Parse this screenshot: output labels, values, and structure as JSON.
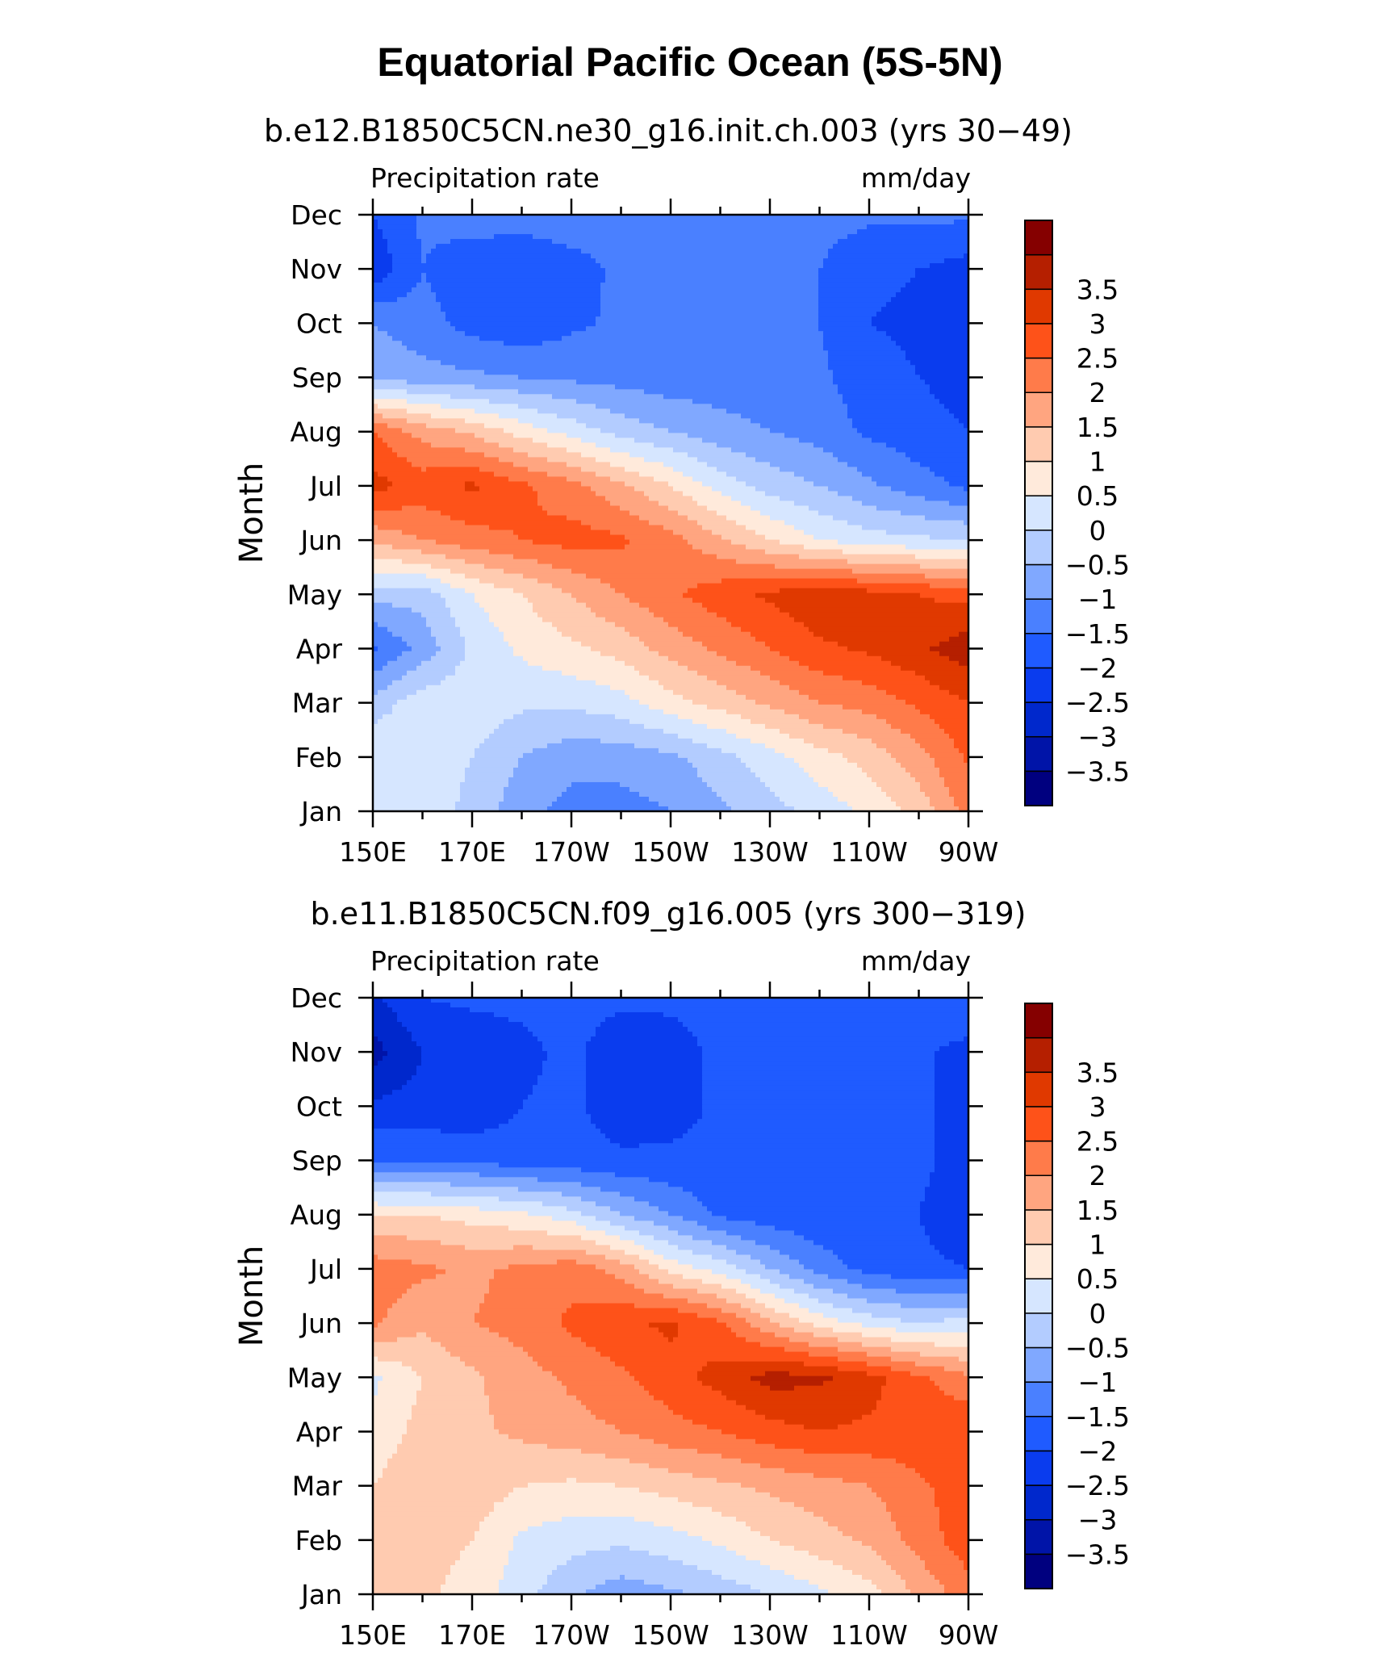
{
  "title": "Equatorial Pacific Ocean (5S-5N)",
  "chart_data": [
    {
      "type": "heatmap",
      "title": "b.e12.B1850C5CN.ne30_g16.init.ch.003 (yrs 30−49)",
      "left_label": "Precipitation rate",
      "right_label": "mm/day",
      "ylabel": "Month",
      "x_ticks": [
        "150E",
        "170E",
        "170W",
        "150W",
        "130W",
        "110W",
        "90W"
      ],
      "y_ticks": [
        "Jan",
        "Feb",
        "Mar",
        "Apr",
        "May",
        "Jun",
        "Jul",
        "Aug",
        "Sep",
        "Oct",
        "Nov",
        "Dec"
      ],
      "x": [
        150,
        160,
        170,
        180,
        190,
        200,
        210,
        220,
        230,
        240,
        250,
        260,
        270
      ],
      "y": [
        "Jan",
        "Feb",
        "Mar",
        "Apr",
        "May",
        "Jun",
        "Jul",
        "Aug",
        "Sep",
        "Oct",
        "Nov",
        "Dec"
      ],
      "z": [
        [
          0.3,
          0.4,
          -0.2,
          -0.8,
          -1.2,
          -1.2,
          -1.0,
          -0.6,
          -0.2,
          0.2,
          0.6,
          1.2,
          2.2
        ],
        [
          0.5,
          0.4,
          0.0,
          -0.5,
          -0.8,
          -0.8,
          -0.6,
          -0.2,
          0.3,
          0.8,
          1.2,
          1.8,
          2.6
        ],
        [
          -0.3,
          0.3,
          0.3,
          0.1,
          0.1,
          0.3,
          0.8,
          1.2,
          1.6,
          2.0,
          2.2,
          2.6,
          3.0
        ],
        [
          -1.6,
          -0.8,
          0.1,
          0.6,
          0.9,
          1.2,
          1.7,
          2.1,
          2.5,
          2.9,
          3.1,
          3.4,
          3.8
        ],
        [
          -0.3,
          -0.3,
          0.5,
          1.0,
          1.5,
          2.0,
          2.4,
          2.8,
          3.1,
          3.4,
          3.2,
          3.0,
          2.8
        ],
        [
          1.6,
          2.0,
          2.3,
          2.5,
          2.7,
          2.6,
          2.2,
          1.6,
          1.0,
          0.5,
          0.2,
          0.1,
          0.0
        ],
        [
          3.2,
          2.8,
          3.1,
          2.6,
          2.2,
          1.6,
          1.0,
          0.3,
          -0.2,
          -0.5,
          -0.9,
          -1.3,
          -1.6
        ],
        [
          2.5,
          1.8,
          1.4,
          0.8,
          0.3,
          -0.2,
          -0.5,
          -0.8,
          -1.0,
          -1.2,
          -1.6,
          -1.8,
          -2.0
        ],
        [
          -0.6,
          -0.8,
          -0.9,
          -1.0,
          -1.1,
          -1.2,
          -1.3,
          -1.3,
          -1.3,
          -1.4,
          -1.8,
          -2.0,
          -2.2
        ],
        [
          -1.0,
          -1.3,
          -1.7,
          -1.9,
          -1.6,
          -1.4,
          -1.4,
          -1.4,
          -1.4,
          -1.5,
          -2.0,
          -2.1,
          -2.3
        ],
        [
          -2.4,
          -1.5,
          -1.9,
          -2.0,
          -1.7,
          -1.4,
          -1.4,
          -1.4,
          -1.4,
          -1.5,
          -1.9,
          -2.0,
          -2.2
        ],
        [
          -2.0,
          -1.4,
          -1.2,
          -1.2,
          -1.2,
          -1.3,
          -1.3,
          -1.3,
          -1.3,
          -1.3,
          -1.4,
          -1.4,
          -1.4
        ]
      ],
      "colorbar": {
        "levels": [
          -3.5,
          -3,
          -2.5,
          -2,
          -1.5,
          -1,
          -0.5,
          0,
          0.5,
          1,
          1.5,
          2,
          2.5,
          3,
          3.5
        ],
        "labels": [
          "−3.5",
          "−3",
          "−2.5",
          "−2",
          "−1.5",
          "−1",
          "−0.5",
          "0",
          "0.5",
          "1",
          "1.5",
          "2",
          "2.5",
          "3",
          "3.5"
        ],
        "colors": [
          "#00007f",
          "#0014a8",
          "#0028cc",
          "#0a3cee",
          "#1f5bff",
          "#4a80ff",
          "#80a8ff",
          "#b3ccff",
          "#d6e6ff",
          "#ffeadb",
          "#ffcbb0",
          "#ffa580",
          "#ff7b4a",
          "#fe5219",
          "#e03900",
          "#b51f00",
          "#850000"
        ]
      }
    },
    {
      "type": "heatmap",
      "title": "b.e11.B1850C5CN.f09_g16.005 (yrs 300−319)",
      "left_label": "Precipitation rate",
      "right_label": "mm/day",
      "ylabel": "Month",
      "x_ticks": [
        "150E",
        "170E",
        "170W",
        "150W",
        "130W",
        "110W",
        "90W"
      ],
      "y_ticks": [
        "Jan",
        "Feb",
        "Mar",
        "Apr",
        "May",
        "Jun",
        "Jul",
        "Aug",
        "Sep",
        "Oct",
        "Nov",
        "Dec"
      ],
      "x": [
        150,
        160,
        170,
        180,
        190,
        200,
        210,
        220,
        230,
        240,
        250,
        260,
        270
      ],
      "y": [
        "Jan",
        "Feb",
        "Mar",
        "Apr",
        "May",
        "Jun",
        "Jul",
        "Aug",
        "Sep",
        "Oct",
        "Nov",
        "Dec"
      ],
      "z": [
        [
          1.2,
          1.1,
          0.8,
          0.2,
          -0.4,
          -0.8,
          -0.6,
          -0.3,
          0.0,
          0.4,
          0.8,
          1.6,
          2.3
        ],
        [
          1.4,
          1.2,
          1.0,
          0.4,
          0.2,
          0.1,
          0.3,
          0.6,
          1.0,
          1.3,
          1.6,
          2.2,
          2.8
        ],
        [
          1.0,
          1.5,
          1.3,
          1.0,
          0.9,
          1.0,
          1.2,
          1.4,
          1.6,
          1.8,
          2.0,
          2.4,
          2.8
        ],
        [
          0.6,
          1.2,
          1.4,
          1.6,
          1.8,
          2.0,
          2.3,
          2.5,
          2.8,
          3.0,
          2.9,
          2.8,
          3.0
        ],
        [
          0.4,
          1.0,
          1.4,
          1.8,
          2.1,
          2.4,
          2.8,
          3.2,
          3.7,
          3.6,
          3.2,
          2.6,
          2.1
        ],
        [
          2.1,
          1.6,
          2.0,
          2.2,
          2.6,
          2.9,
          3.1,
          2.6,
          1.6,
          0.8,
          0.3,
          0.0,
          0.2
        ],
        [
          2.3,
          2.1,
          1.9,
          2.1,
          2.3,
          1.8,
          0.8,
          0.3,
          -0.5,
          -1.2,
          -1.7,
          -1.9,
          -2.0
        ],
        [
          1.0,
          1.0,
          0.8,
          0.6,
          0.2,
          -0.5,
          -1.0,
          -1.6,
          -1.8,
          -1.9,
          -1.9,
          -2.0,
          -2.3
        ],
        [
          -1.5,
          -1.6,
          -1.6,
          -1.8,
          -1.8,
          -1.9,
          -1.9,
          -1.9,
          -1.9,
          -1.9,
          -1.9,
          -1.9,
          -2.2
        ],
        [
          -2.4,
          -2.3,
          -2.4,
          -2.0,
          -1.9,
          -2.3,
          -2.2,
          -1.9,
          -1.8,
          -1.8,
          -1.8,
          -1.9,
          -2.2
        ],
        [
          -3.2,
          -2.5,
          -2.3,
          -2.1,
          -1.9,
          -2.3,
          -2.2,
          -1.9,
          -1.8,
          -1.8,
          -1.8,
          -1.9,
          -2.2
        ],
        [
          -2.6,
          -2.0,
          -1.9,
          -1.9,
          -1.8,
          -1.9,
          -1.9,
          -1.8,
          -1.7,
          -1.6,
          -1.5,
          -1.5,
          -1.5
        ]
      ],
      "colorbar": {
        "levels": [
          -3.5,
          -3,
          -2.5,
          -2,
          -1.5,
          -1,
          -0.5,
          0,
          0.5,
          1,
          1.5,
          2,
          2.5,
          3,
          3.5
        ],
        "labels": [
          "−3.5",
          "−3",
          "−2.5",
          "−2",
          "−1.5",
          "−1",
          "−0.5",
          "0",
          "0.5",
          "1",
          "1.5",
          "2",
          "2.5",
          "3",
          "3.5"
        ],
        "colors": [
          "#00007f",
          "#0014a8",
          "#0028cc",
          "#0a3cee",
          "#1f5bff",
          "#4a80ff",
          "#80a8ff",
          "#b3ccff",
          "#d6e6ff",
          "#ffeadb",
          "#ffcbb0",
          "#ffa580",
          "#ff7b4a",
          "#fe5219",
          "#e03900",
          "#b51f00",
          "#850000"
        ]
      }
    }
  ]
}
